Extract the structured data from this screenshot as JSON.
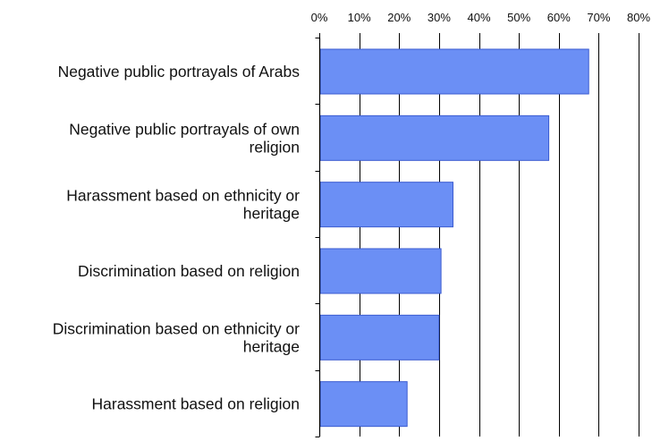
{
  "chart_data": {
    "type": "bar",
    "orientation": "horizontal",
    "title": "",
    "xlabel": "",
    "ylabel": "",
    "xlim": [
      0,
      80
    ],
    "x_ticks": [
      "0%",
      "10%",
      "20%",
      "30%",
      "40%",
      "50%",
      "60%",
      "70%",
      "80%"
    ],
    "x_tick_values": [
      0,
      10,
      20,
      30,
      40,
      50,
      60,
      70,
      80
    ],
    "x_axis_position": "top",
    "grid": true,
    "legend": "none",
    "bar_color": "#6b8ff5",
    "bar_edge_color": "#3b5bd0",
    "categories": [
      "Negative public portrayals of Arabs",
      "Negative public portrayals of own religion",
      "Harassment based on ethnicity or heritage",
      "Discrimination based on religion",
      "Discrimination based on ethnicity or heritage",
      "Harassment based on religion"
    ],
    "category_lines": [
      [
        "Negative public portrayals of Arabs"
      ],
      [
        "Negative public portrayals of own",
        "religion"
      ],
      [
        "Harassment based on ethnicity or",
        "heritage"
      ],
      [
        "Discrimination based on religion"
      ],
      [
        "Discrimination based on ethnicity or",
        "heritage"
      ],
      [
        "Harassment based on religion"
      ]
    ],
    "values": [
      67.5,
      57.5,
      33.5,
      30.5,
      30.0,
      22.0
    ]
  }
}
